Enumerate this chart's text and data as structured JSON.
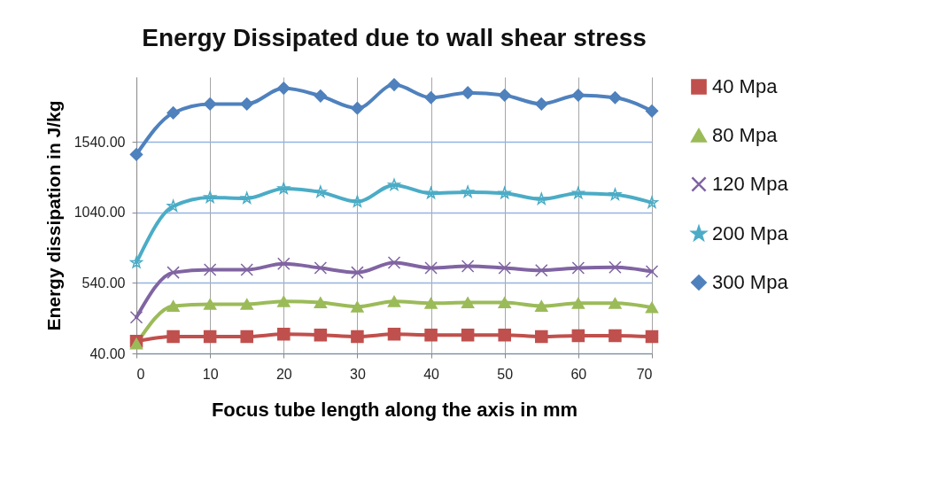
{
  "chart_data": {
    "type": "line",
    "title": "Energy Dissipated due to wall shear stress",
    "xlabel": "Focus tube length along the axis in mm",
    "ylabel": "Energy dissipation in J/kg",
    "x": [
      0,
      5,
      10,
      15,
      20,
      25,
      30,
      35,
      40,
      45,
      50,
      55,
      60,
      65,
      70
    ],
    "xlim": [
      0,
      70
    ],
    "xticks": [
      0,
      10,
      20,
      30,
      40,
      50,
      60,
      70
    ],
    "ylim": [
      40,
      2000
    ],
    "yticks": [
      {
        "value": 40,
        "label": "40.00"
      },
      {
        "value": 540,
        "label": "540.00"
      },
      {
        "value": 1040,
        "label": "1040.00"
      },
      {
        "value": 1540,
        "label": "1540.00"
      }
    ],
    "grid": true,
    "legend": "right",
    "series": [
      {
        "name": "40 Mpa",
        "color": "#c0504d",
        "marker": "square",
        "values": [
          126,
          159,
          159,
          159,
          176,
          171,
          159,
          176,
          171,
          171,
          171,
          159,
          166,
          166,
          159
        ]
      },
      {
        "name": "80 Mpa",
        "color": "#9bbb59",
        "marker": "triangle",
        "values": [
          109,
          376,
          389,
          389,
          409,
          401,
          371,
          409,
          396,
          401,
          401,
          376,
          396,
          396,
          366
        ]
      },
      {
        "name": "120 Mpa",
        "color": "#8064a2",
        "marker": "cross",
        "values": [
          296,
          614,
          634,
          634,
          676,
          646,
          614,
          684,
          646,
          659,
          646,
          629,
          646,
          651,
          621
        ]
      },
      {
        "name": "200 Mpa",
        "color": "#4bacc6",
        "marker": "star",
        "values": [
          684,
          1084,
          1146,
          1140,
          1209,
          1184,
          1116,
          1234,
          1176,
          1184,
          1176,
          1134,
          1176,
          1166,
          1109
        ]
      },
      {
        "name": "300 Mpa",
        "color": "#4f81bd",
        "marker": "diamond",
        "values": [
          1451,
          1746,
          1809,
          1809,
          1921,
          1866,
          1779,
          1946,
          1854,
          1889,
          1871,
          1809,
          1871,
          1854,
          1759
        ]
      }
    ]
  }
}
